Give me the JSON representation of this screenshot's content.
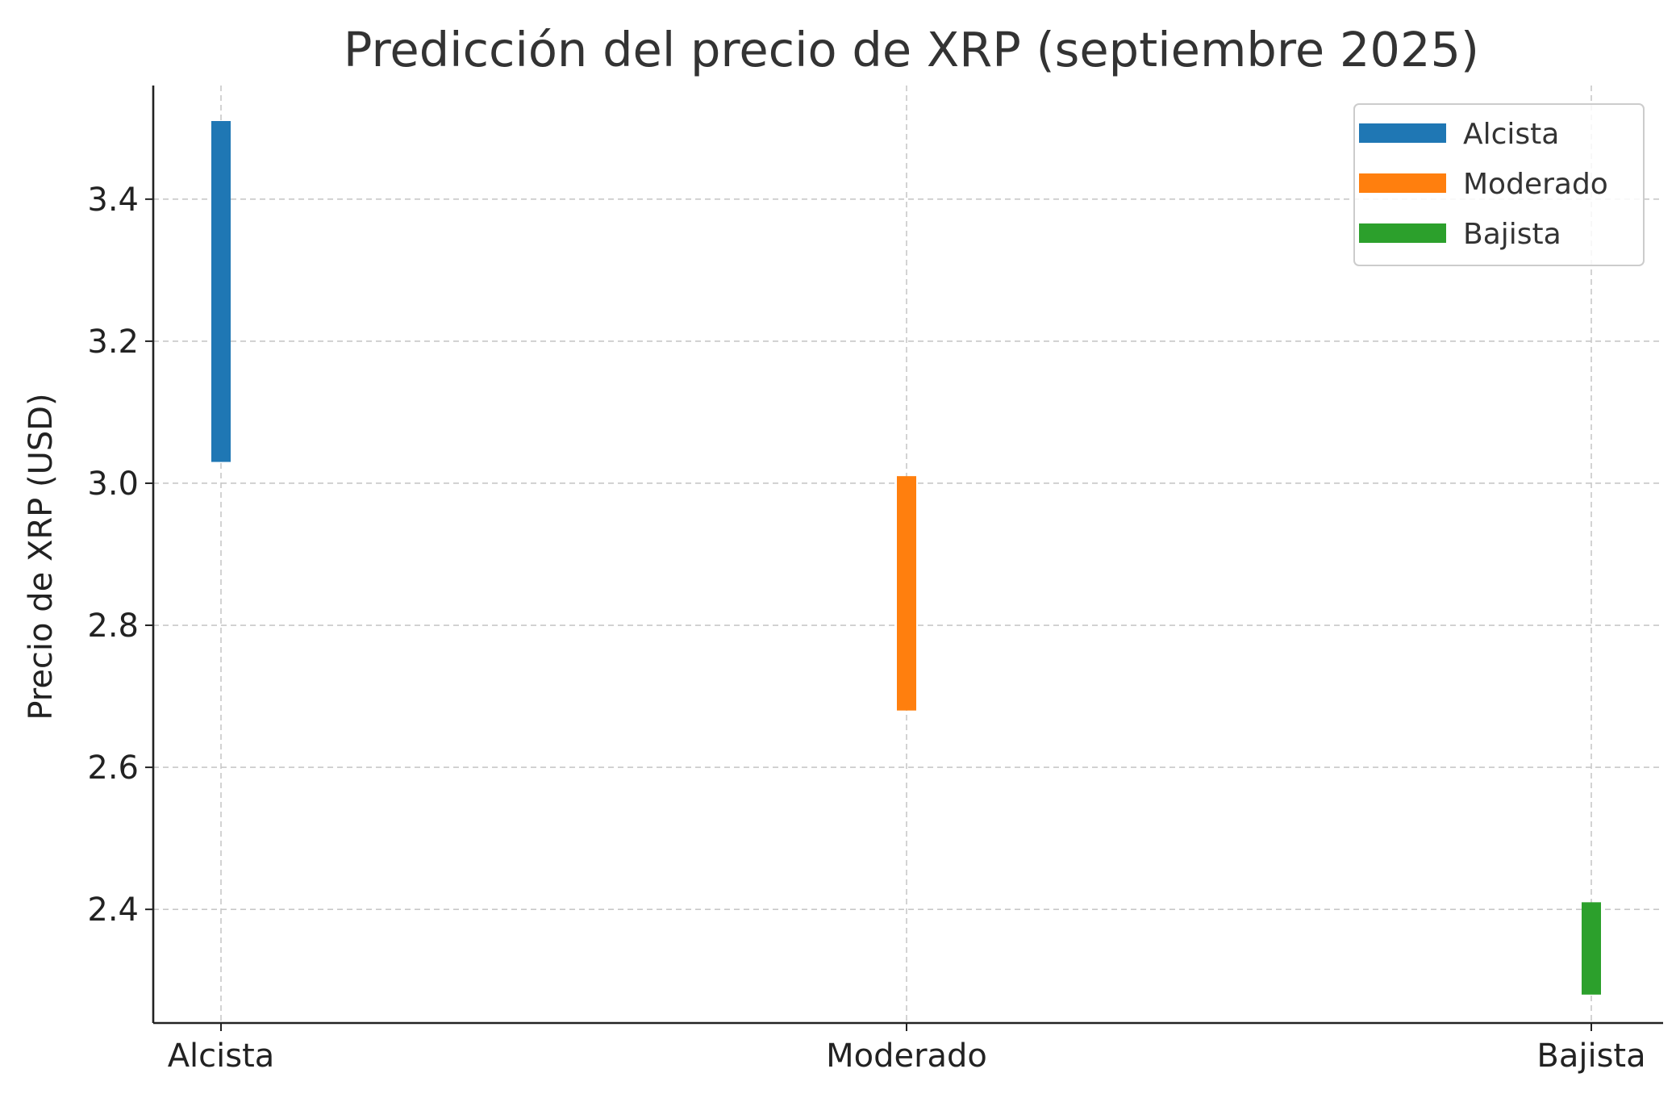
{
  "chart_data": {
    "type": "bar",
    "subtype": "floating-range",
    "title": "Predicción del precio de XRP (septiembre 2025)",
    "xlabel": "",
    "ylabel": "Precio de XRP (USD)",
    "categories": [
      "Alcista",
      "Moderado",
      "Bajista"
    ],
    "series": [
      {
        "name": "Alcista",
        "category": "Alcista",
        "low": 3.03,
        "high": 3.51,
        "color": "#1f77b4"
      },
      {
        "name": "Moderado",
        "category": "Moderado",
        "low": 2.68,
        "high": 3.01,
        "color": "#ff7f0e"
      },
      {
        "name": "Bajista",
        "category": "Bajista",
        "low": 2.28,
        "high": 2.41,
        "color": "#2ca02c"
      }
    ],
    "ylim": [
      2.24,
      3.56
    ],
    "yticks": [
      "2.4",
      "2.6",
      "2.8",
      "3.0",
      "3.2",
      "3.4"
    ],
    "grid": true,
    "legend_position": "top-right"
  }
}
